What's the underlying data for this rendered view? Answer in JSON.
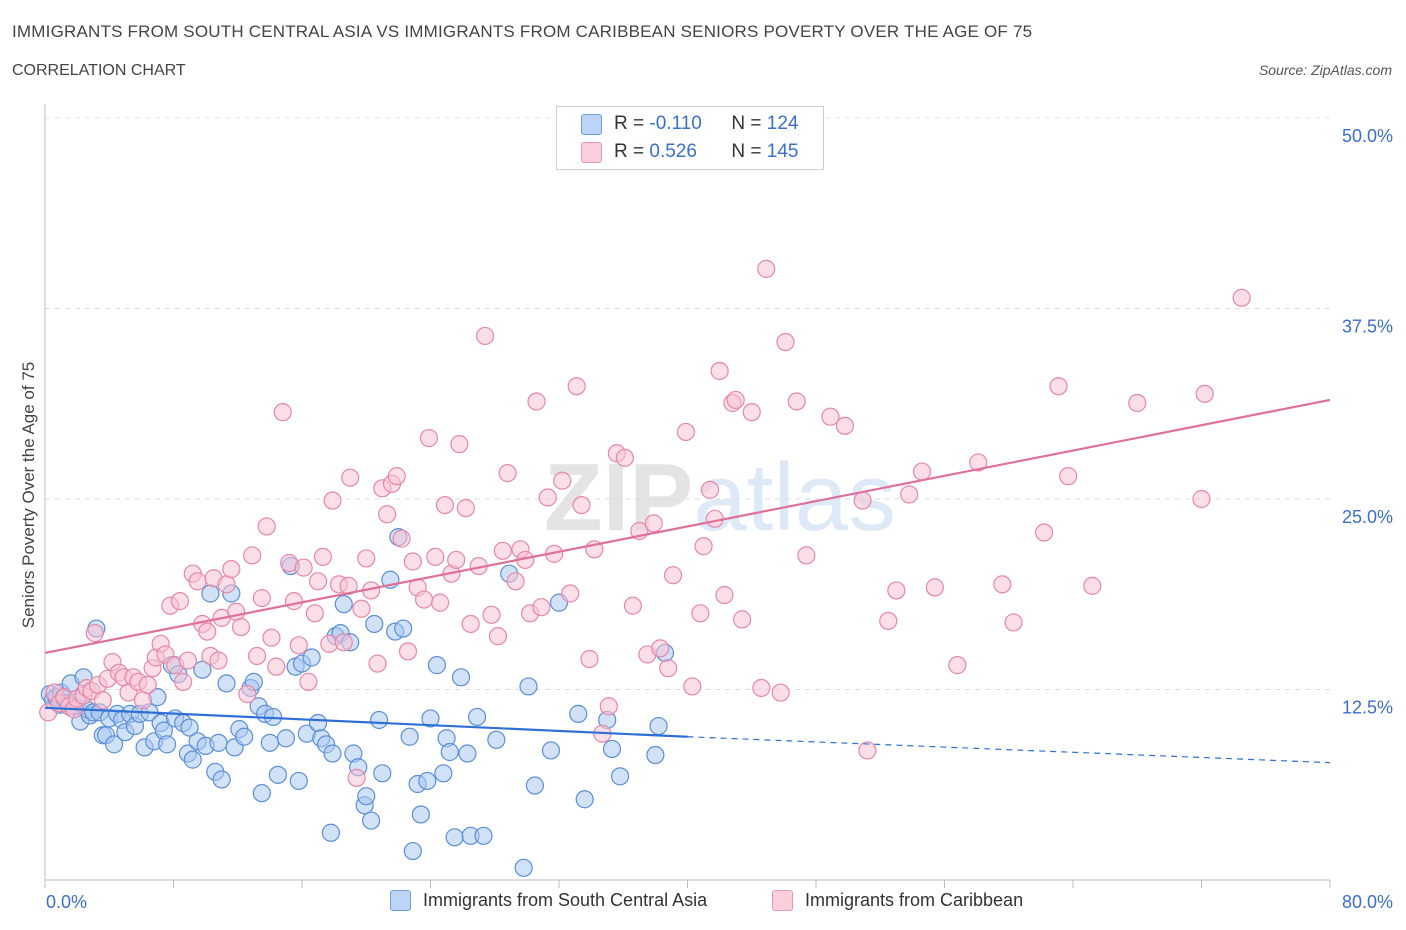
{
  "title": "IMMIGRANTS FROM SOUTH CENTRAL ASIA VS IMMIGRANTS FROM CARIBBEAN SENIORS POVERTY OVER THE AGE OF 75",
  "subtitle": "CORRELATION CHART",
  "source": "Source: ZipAtlas.com",
  "watermark": "ZIPatlas",
  "legend": {
    "r_label": "R =",
    "n_label": "N =",
    "rows": [
      {
        "r": "-0.110",
        "n": "124"
      },
      {
        "r": "0.526",
        "n": "145"
      }
    ]
  },
  "colors": {
    "blue_fill": "#aac8f2",
    "blue_stroke": "#5b8fd8",
    "blue_line": "#2f6fd6",
    "pink_fill": "#f7c3d3",
    "pink_stroke": "#e887a7",
    "pink_line": "#e0709a",
    "tick_text": "#3a6fd0"
  },
  "chart_data": {
    "type": "scatter",
    "xlabel": "",
    "ylabel": "Seniors Poverty Over the Age of 75",
    "xlim": [
      0,
      80
    ],
    "ylim": [
      0,
      50
    ],
    "x_tick_labels": [
      "0.0%",
      "80.0%"
    ],
    "y_tick_labels": [
      "12.5%",
      "25.0%",
      "37.5%",
      "50.0%"
    ],
    "y_ticks": [
      12.5,
      25.0,
      37.5,
      50.0
    ],
    "grid": true,
    "legend_placement": "top-center",
    "series": [
      {
        "name": "Immigrants from South Central Asia",
        "color": "blue",
        "trend": {
          "x0": 0,
          "y0": 11.3,
          "x1": 40,
          "y1": 9.4,
          "dash_to_x": 80,
          "dash_to_y": 7.7
        },
        "points": [
          [
            0.3,
            12.2
          ],
          [
            0.5,
            11.8
          ],
          [
            0.7,
            12.0
          ],
          [
            0.9,
            11.5
          ],
          [
            1.0,
            12.3
          ],
          [
            1.2,
            11.9
          ],
          [
            1.4,
            11.6
          ],
          [
            1.6,
            12.9
          ],
          [
            1.8,
            11.4
          ],
          [
            2.0,
            11.7
          ],
          [
            2.2,
            10.4
          ],
          [
            2.4,
            13.3
          ],
          [
            2.6,
            11.2
          ],
          [
            2.8,
            10.8
          ],
          [
            3.0,
            11.0
          ],
          [
            3.2,
            16.5
          ],
          [
            3.4,
            11.0
          ],
          [
            3.6,
            9.5
          ],
          [
            3.8,
            9.5
          ],
          [
            4.0,
            10.6
          ],
          [
            4.3,
            8.9
          ],
          [
            4.5,
            10.9
          ],
          [
            4.8,
            10.5
          ],
          [
            5.0,
            9.7
          ],
          [
            5.3,
            10.9
          ],
          [
            5.6,
            10.1
          ],
          [
            5.9,
            10.9
          ],
          [
            6.2,
            8.7
          ],
          [
            6.5,
            11.0
          ],
          [
            6.8,
            9.1
          ],
          [
            7.0,
            12.0
          ],
          [
            7.2,
            10.3
          ],
          [
            7.4,
            9.8
          ],
          [
            7.6,
            8.9
          ],
          [
            7.9,
            14.1
          ],
          [
            8.1,
            10.6
          ],
          [
            8.3,
            13.5
          ],
          [
            8.6,
            10.3
          ],
          [
            8.9,
            8.3
          ],
          [
            9.0,
            10.0
          ],
          [
            9.2,
            7.9
          ],
          [
            9.5,
            9.1
          ],
          [
            9.8,
            13.8
          ],
          [
            10.0,
            8.8
          ],
          [
            10.3,
            18.8
          ],
          [
            10.6,
            7.1
          ],
          [
            10.8,
            9.0
          ],
          [
            11.0,
            6.6
          ],
          [
            11.3,
            12.9
          ],
          [
            11.6,
            18.8
          ],
          [
            11.8,
            8.7
          ],
          [
            12.1,
            9.9
          ],
          [
            12.4,
            9.4
          ],
          [
            12.8,
            12.6
          ],
          [
            13.0,
            13.0
          ],
          [
            13.3,
            11.4
          ],
          [
            13.5,
            5.7
          ],
          [
            13.7,
            10.9
          ],
          [
            14.0,
            9.0
          ],
          [
            14.2,
            10.7
          ],
          [
            14.5,
            6.9
          ],
          [
            15.0,
            9.3
          ],
          [
            15.3,
            20.6
          ],
          [
            15.6,
            14.0
          ],
          [
            15.8,
            6.5
          ],
          [
            16.0,
            14.2
          ],
          [
            16.3,
            9.6
          ],
          [
            16.6,
            14.6
          ],
          [
            17.0,
            10.3
          ],
          [
            17.2,
            9.3
          ],
          [
            17.5,
            8.9
          ],
          [
            17.8,
            3.1
          ],
          [
            17.9,
            8.3
          ],
          [
            18.1,
            16.0
          ],
          [
            18.4,
            16.2
          ],
          [
            18.6,
            18.1
          ],
          [
            19.0,
            15.6
          ],
          [
            19.2,
            8.3
          ],
          [
            19.5,
            7.4
          ],
          [
            19.9,
            4.9
          ],
          [
            20.0,
            5.5
          ],
          [
            20.3,
            3.9
          ],
          [
            20.5,
            16.8
          ],
          [
            20.8,
            10.5
          ],
          [
            21.0,
            7.0
          ],
          [
            21.5,
            19.7
          ],
          [
            21.8,
            16.3
          ],
          [
            22.0,
            22.5
          ],
          [
            22.3,
            16.5
          ],
          [
            22.7,
            9.4
          ],
          [
            22.9,
            1.9
          ],
          [
            23.2,
            6.3
          ],
          [
            23.4,
            4.3
          ],
          [
            23.8,
            6.5
          ],
          [
            24.0,
            10.6
          ],
          [
            24.4,
            14.1
          ],
          [
            24.8,
            7.0
          ],
          [
            25.0,
            9.3
          ],
          [
            25.2,
            8.4
          ],
          [
            25.5,
            2.8
          ],
          [
            25.9,
            13.3
          ],
          [
            26.3,
            8.3
          ],
          [
            26.5,
            2.9
          ],
          [
            26.9,
            10.7
          ],
          [
            27.3,
            2.9
          ],
          [
            28.1,
            9.2
          ],
          [
            28.9,
            20.1
          ],
          [
            29.8,
            0.8
          ],
          [
            30.1,
            12.7
          ],
          [
            30.5,
            6.2
          ],
          [
            31.5,
            8.5
          ],
          [
            32.0,
            18.2
          ],
          [
            33.2,
            10.9
          ],
          [
            33.6,
            5.3
          ],
          [
            35.0,
            10.5
          ],
          [
            35.3,
            8.6
          ],
          [
            35.8,
            6.8
          ],
          [
            38.0,
            8.2
          ],
          [
            38.2,
            10.1
          ],
          [
            38.6,
            14.9
          ]
        ]
      },
      {
        "name": "Immigrants from Caribbean",
        "color": "pink",
        "trend": {
          "x0": 0,
          "y0": 14.9,
          "x1": 80,
          "y1": 31.5
        },
        "points": [
          [
            0.2,
            11.0
          ],
          [
            0.6,
            12.3
          ],
          [
            0.9,
            11.6
          ],
          [
            1.2,
            12.0
          ],
          [
            1.5,
            11.4
          ],
          [
            1.8,
            11.2
          ],
          [
            2.0,
            11.9
          ],
          [
            2.4,
            12.1
          ],
          [
            2.6,
            12.6
          ],
          [
            2.9,
            12.4
          ],
          [
            3.1,
            16.2
          ],
          [
            3.3,
            12.8
          ],
          [
            3.6,
            11.8
          ],
          [
            3.9,
            13.2
          ],
          [
            4.2,
            14.3
          ],
          [
            4.6,
            13.6
          ],
          [
            4.9,
            13.3
          ],
          [
            5.2,
            12.3
          ],
          [
            5.5,
            13.3
          ],
          [
            5.8,
            13.0
          ],
          [
            6.1,
            11.8
          ],
          [
            6.4,
            12.8
          ],
          [
            6.7,
            13.9
          ],
          [
            6.9,
            14.6
          ],
          [
            7.2,
            15.5
          ],
          [
            7.5,
            14.8
          ],
          [
            7.8,
            18.0
          ],
          [
            8.1,
            14.1
          ],
          [
            8.4,
            18.3
          ],
          [
            8.6,
            13.0
          ],
          [
            8.9,
            14.4
          ],
          [
            9.2,
            20.1
          ],
          [
            9.5,
            19.6
          ],
          [
            9.8,
            16.8
          ],
          [
            10.1,
            16.3
          ],
          [
            10.3,
            14.7
          ],
          [
            10.5,
            19.8
          ],
          [
            10.8,
            14.4
          ],
          [
            11.0,
            17.2
          ],
          [
            11.3,
            19.4
          ],
          [
            11.6,
            20.4
          ],
          [
            11.9,
            17.6
          ],
          [
            12.2,
            16.6
          ],
          [
            12.6,
            12.2
          ],
          [
            12.9,
            21.3
          ],
          [
            13.2,
            14.7
          ],
          [
            13.5,
            18.5
          ],
          [
            13.8,
            23.2
          ],
          [
            14.1,
            15.9
          ],
          [
            14.4,
            14.0
          ],
          [
            14.8,
            30.7
          ],
          [
            15.2,
            20.8
          ],
          [
            15.5,
            18.3
          ],
          [
            15.8,
            15.4
          ],
          [
            16.1,
            20.5
          ],
          [
            16.4,
            13.0
          ],
          [
            16.8,
            17.5
          ],
          [
            17.0,
            19.6
          ],
          [
            17.3,
            21.2
          ],
          [
            17.7,
            15.5
          ],
          [
            17.9,
            24.9
          ],
          [
            18.3,
            19.4
          ],
          [
            18.6,
            15.6
          ],
          [
            18.9,
            19.3
          ],
          [
            19.0,
            26.4
          ],
          [
            19.4,
            6.7
          ],
          [
            19.7,
            17.8
          ],
          [
            20.0,
            21.1
          ],
          [
            20.3,
            19.0
          ],
          [
            20.7,
            14.2
          ],
          [
            21.0,
            25.7
          ],
          [
            21.3,
            24.0
          ],
          [
            21.6,
            26.0
          ],
          [
            21.9,
            26.5
          ],
          [
            22.2,
            22.4
          ],
          [
            22.6,
            15.0
          ],
          [
            22.9,
            20.9
          ],
          [
            23.2,
            19.2
          ],
          [
            23.6,
            18.4
          ],
          [
            23.9,
            29.0
          ],
          [
            24.3,
            21.2
          ],
          [
            24.6,
            18.2
          ],
          [
            24.9,
            24.6
          ],
          [
            25.3,
            20.1
          ],
          [
            25.6,
            21.0
          ],
          [
            25.8,
            28.6
          ],
          [
            26.2,
            24.4
          ],
          [
            26.5,
            16.8
          ],
          [
            27.0,
            20.6
          ],
          [
            27.4,
            35.7
          ],
          [
            27.8,
            17.4
          ],
          [
            28.2,
            16.0
          ],
          [
            28.5,
            21.6
          ],
          [
            28.8,
            26.7
          ],
          [
            29.3,
            19.6
          ],
          [
            29.6,
            21.7
          ],
          [
            29.9,
            21.0
          ],
          [
            30.2,
            17.5
          ],
          [
            30.6,
            31.4
          ],
          [
            30.9,
            17.9
          ],
          [
            31.3,
            25.1
          ],
          [
            31.7,
            21.4
          ],
          [
            32.2,
            26.2
          ],
          [
            32.7,
            18.8
          ],
          [
            33.1,
            32.4
          ],
          [
            33.4,
            24.6
          ],
          [
            33.9,
            14.5
          ],
          [
            34.2,
            21.7
          ],
          [
            34.7,
            9.6
          ],
          [
            35.1,
            11.4
          ],
          [
            35.6,
            28.0
          ],
          [
            36.1,
            27.7
          ],
          [
            36.6,
            18.0
          ],
          [
            37.0,
            22.9
          ],
          [
            37.5,
            14.8
          ],
          [
            37.9,
            23.4
          ],
          [
            38.3,
            15.2
          ],
          [
            38.8,
            13.9
          ],
          [
            39.1,
            20.0
          ],
          [
            39.9,
            29.4
          ],
          [
            40.3,
            12.7
          ],
          [
            40.8,
            17.5
          ],
          [
            41.0,
            21.9
          ],
          [
            41.4,
            25.6
          ],
          [
            41.7,
            23.7
          ],
          [
            42.0,
            33.4
          ],
          [
            42.3,
            18.7
          ],
          [
            42.8,
            31.3
          ],
          [
            43.0,
            31.5
          ],
          [
            43.4,
            17.1
          ],
          [
            44.0,
            30.7
          ],
          [
            44.6,
            12.6
          ],
          [
            44.9,
            40.1
          ],
          [
            45.8,
            12.3
          ],
          [
            46.1,
            35.3
          ],
          [
            46.8,
            31.4
          ],
          [
            47.4,
            21.3
          ],
          [
            48.9,
            30.4
          ],
          [
            49.8,
            29.8
          ],
          [
            50.9,
            24.9
          ],
          [
            51.2,
            8.5
          ],
          [
            52.5,
            17.0
          ],
          [
            53.0,
            19.0
          ],
          [
            53.8,
            25.3
          ],
          [
            54.6,
            26.8
          ],
          [
            55.4,
            19.2
          ],
          [
            56.8,
            14.1
          ],
          [
            58.1,
            27.4
          ],
          [
            59.6,
            19.4
          ],
          [
            60.3,
            16.9
          ],
          [
            62.2,
            22.8
          ],
          [
            63.1,
            32.4
          ],
          [
            63.7,
            26.5
          ],
          [
            65.2,
            19.3
          ],
          [
            68.0,
            31.3
          ],
          [
            72.0,
            25.0
          ],
          [
            72.2,
            31.9
          ],
          [
            74.5,
            38.2
          ]
        ]
      }
    ]
  }
}
